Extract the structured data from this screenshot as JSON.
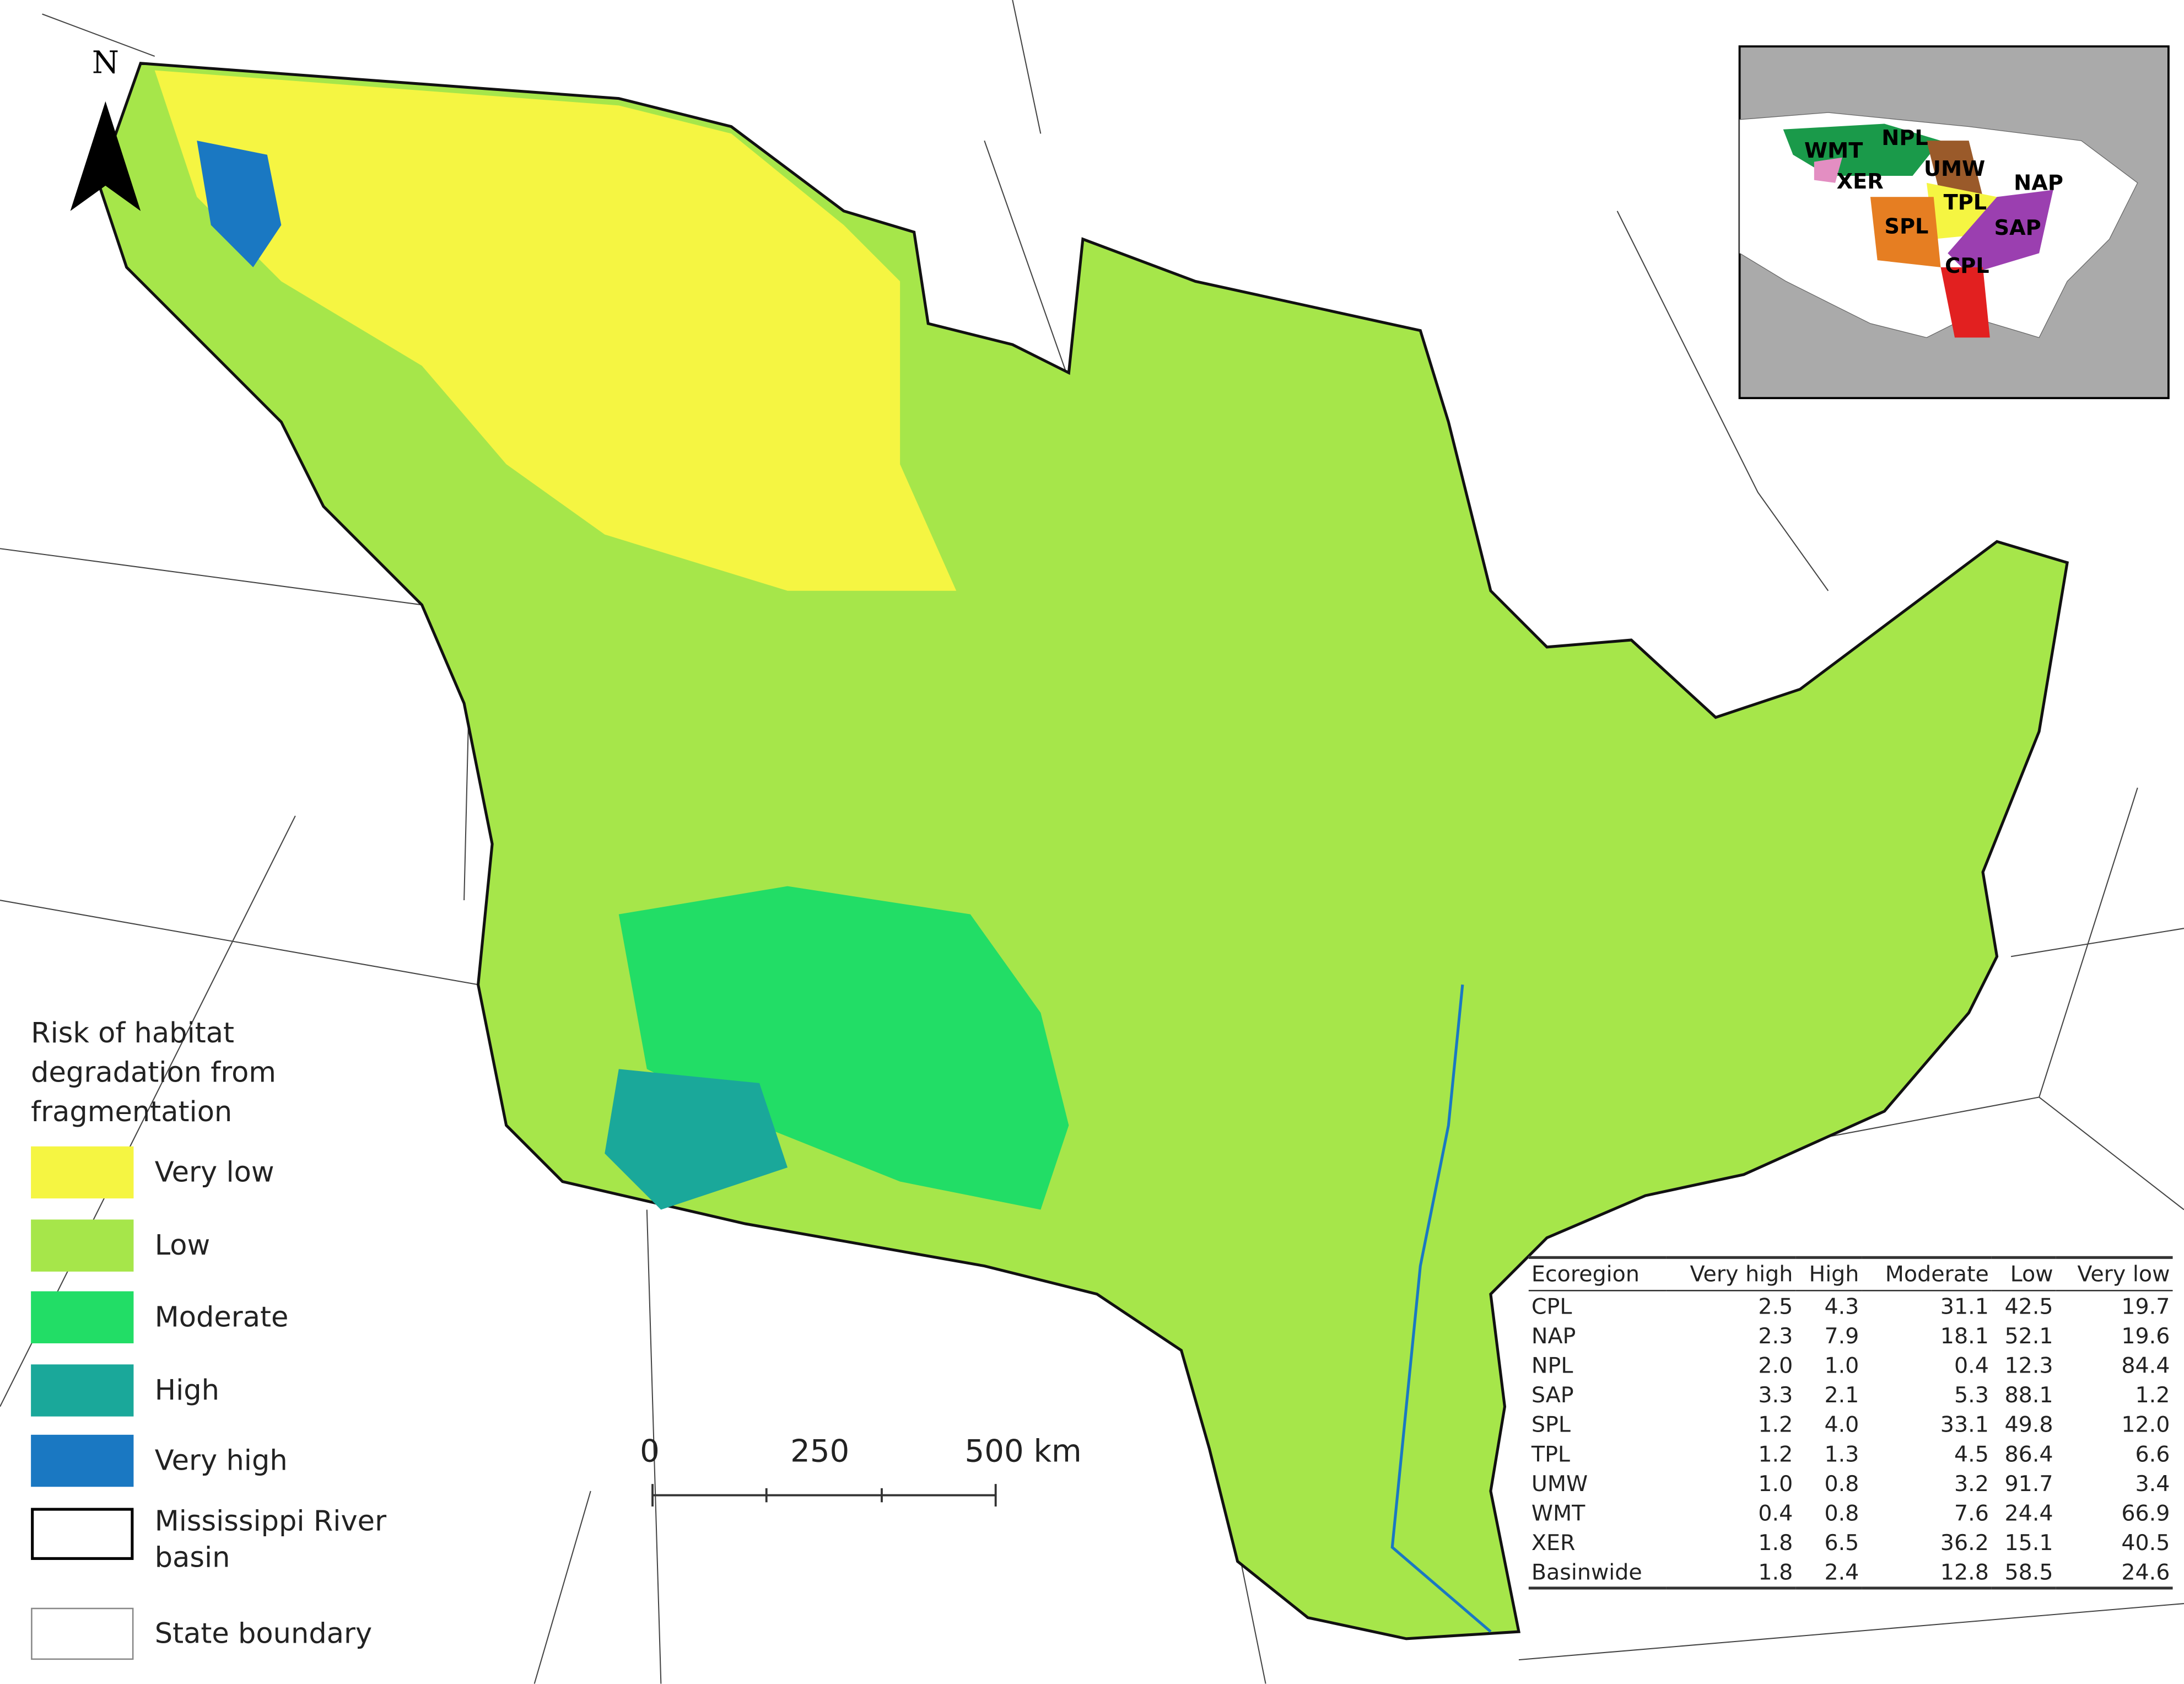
{
  "north_arrow": "N",
  "legend": {
    "title": "Risk of habitat degradation from fragmentation",
    "items": [
      {
        "label": "Very low",
        "color": "#f5f542"
      },
      {
        "label": "Low",
        "color": "#a6e64a"
      },
      {
        "label": "Moderate",
        "color": "#22dd66"
      },
      {
        "label": "High",
        "color": "#1aa89a"
      },
      {
        "label": "Very high",
        "color": "#1a78c2"
      },
      {
        "label": "Mississippi River basin",
        "color": "#ffffff"
      },
      {
        "label": "State boundary",
        "color": "#ffffff"
      }
    ]
  },
  "scale_bar": {
    "labels": [
      "0",
      "250",
      "500 km"
    ]
  },
  "inset": {
    "labels": [
      "WMT",
      "NPL",
      "XER",
      "UMW",
      "TPL",
      "NAP",
      "SPL",
      "SAP",
      "CPL"
    ]
  },
  "table": {
    "header": [
      "Ecoregion",
      "Very high",
      "High",
      "Moderate",
      "Low",
      "Very low"
    ],
    "rows": [
      [
        "CPL",
        "2.5",
        "4.3",
        "31.1",
        "42.5",
        "19.7"
      ],
      [
        "NAP",
        "2.3",
        "7.9",
        "18.1",
        "52.1",
        "19.6"
      ],
      [
        "NPL",
        "2.0",
        "1.0",
        "0.4",
        "12.3",
        "84.4"
      ],
      [
        "SAP",
        "3.3",
        "2.1",
        "5.3",
        "88.1",
        "1.2"
      ],
      [
        "SPL",
        "1.2",
        "4.0",
        "33.1",
        "49.8",
        "12.0"
      ],
      [
        "TPL",
        "1.2",
        "1.3",
        "4.5",
        "86.4",
        "6.6"
      ],
      [
        "UMW",
        "1.0",
        "0.8",
        "3.2",
        "91.7",
        "3.4"
      ],
      [
        "WMT",
        "0.4",
        "0.8",
        "7.6",
        "24.4",
        "66.9"
      ],
      [
        "XER",
        "1.8",
        "6.5",
        "36.2",
        "15.1",
        "40.5"
      ],
      [
        "Basinwide",
        "1.8",
        "2.4",
        "12.8",
        "58.5",
        "24.6"
      ]
    ]
  }
}
